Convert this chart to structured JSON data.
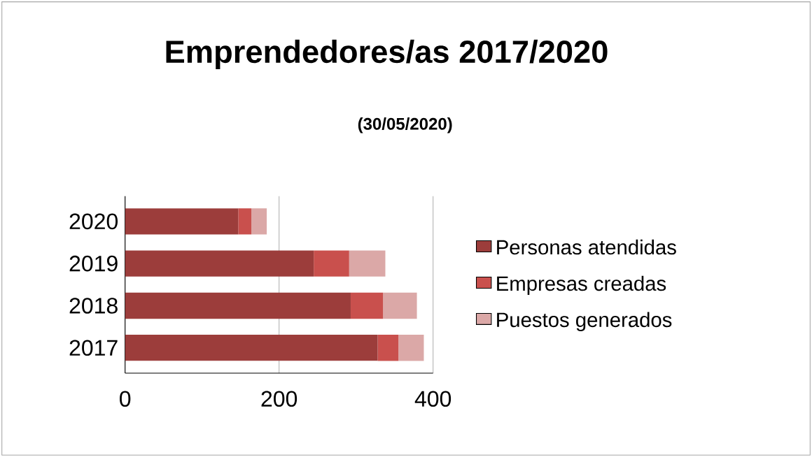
{
  "chart_data": {
    "type": "bar",
    "orientation": "horizontal",
    "stacked": true,
    "title": "Emprendedores/as 2017/2020",
    "subtitle": "(30/05/2020)",
    "categories": [
      "2020",
      "2019",
      "2018",
      "2017"
    ],
    "series": [
      {
        "name": "Personas atendidas",
        "color": "#9c3d3b",
        "values": [
          147,
          245,
          293,
          328
        ]
      },
      {
        "name": "Empresas creadas",
        "color": "#c9504d",
        "values": [
          17,
          46,
          42,
          27
        ]
      },
      {
        "name": "Puestos generados",
        "color": "#dba8a7",
        "values": [
          20,
          47,
          44,
          33
        ]
      }
    ],
    "xlim": [
      0,
      400
    ],
    "xticks": [
      0,
      200,
      400
    ],
    "grid": "x",
    "legend": "right"
  }
}
